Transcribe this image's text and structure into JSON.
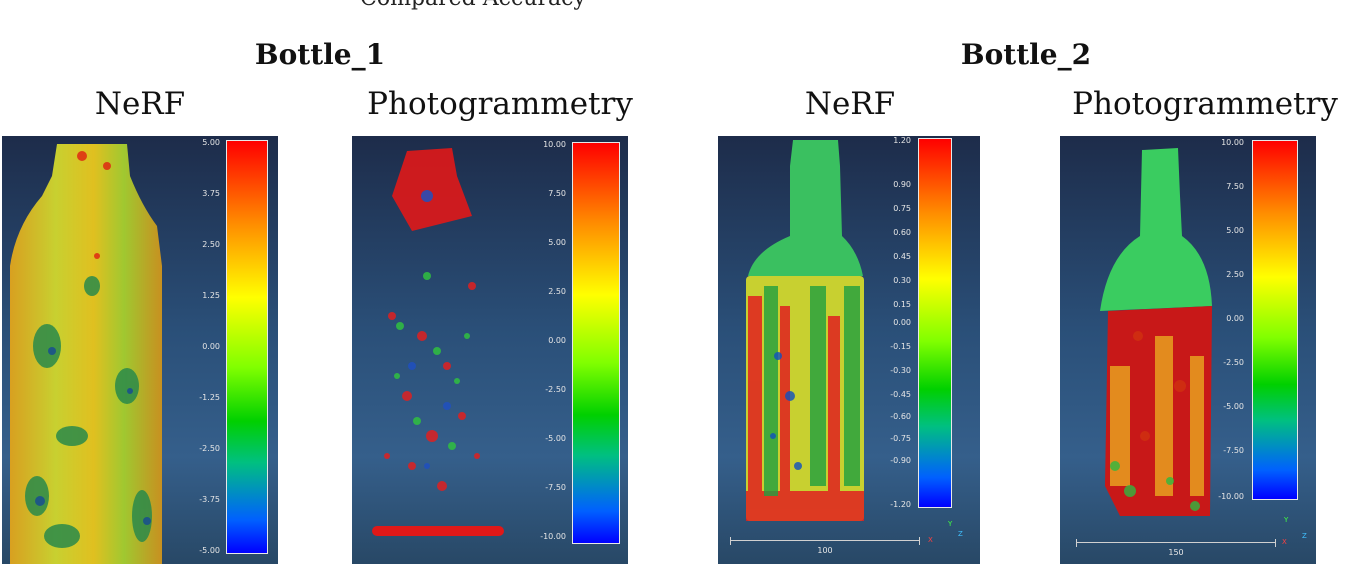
{
  "top_text": "Compared Accuracy",
  "groups": [
    {
      "title": "Bottle_1",
      "methods": [
        "NeRF",
        "Photogrammetry"
      ]
    },
    {
      "title": "Bottle_2",
      "methods": [
        "NeRF",
        "Photogrammetry"
      ]
    }
  ],
  "panels": [
    {
      "id": "b1-nerf",
      "ticks": [
        "5.00",
        "3.75",
        "2.50",
        "1.25",
        "0.00",
        "-1.25",
        "-2.50",
        "-3.75",
        "-5.00"
      ]
    },
    {
      "id": "b1-photo",
      "ticks": [
        "10.00",
        "7.50",
        "5.00",
        "2.50",
        "0.00",
        "-2.50",
        "-5.00",
        "-7.50",
        "-10.00"
      ]
    },
    {
      "id": "b2-nerf",
      "ticks": [
        "1.20",
        "0.90",
        "0.75",
        "0.60",
        "0.45",
        "0.30",
        "0.15",
        "0.00",
        "-0.15",
        "-0.30",
        "-0.45",
        "-0.60",
        "-0.75",
        "-0.90",
        "-1.20"
      ],
      "scale_label": "100"
    },
    {
      "id": "b2-photo",
      "ticks": [
        "10.00",
        "7.50",
        "5.00",
        "2.50",
        "0.00",
        "-2.50",
        "-5.00",
        "-7.50",
        "-10.00"
      ],
      "scale_label": "150"
    }
  ],
  "axis_labels": {
    "x": "X",
    "y": "Y",
    "z": "Z"
  }
}
